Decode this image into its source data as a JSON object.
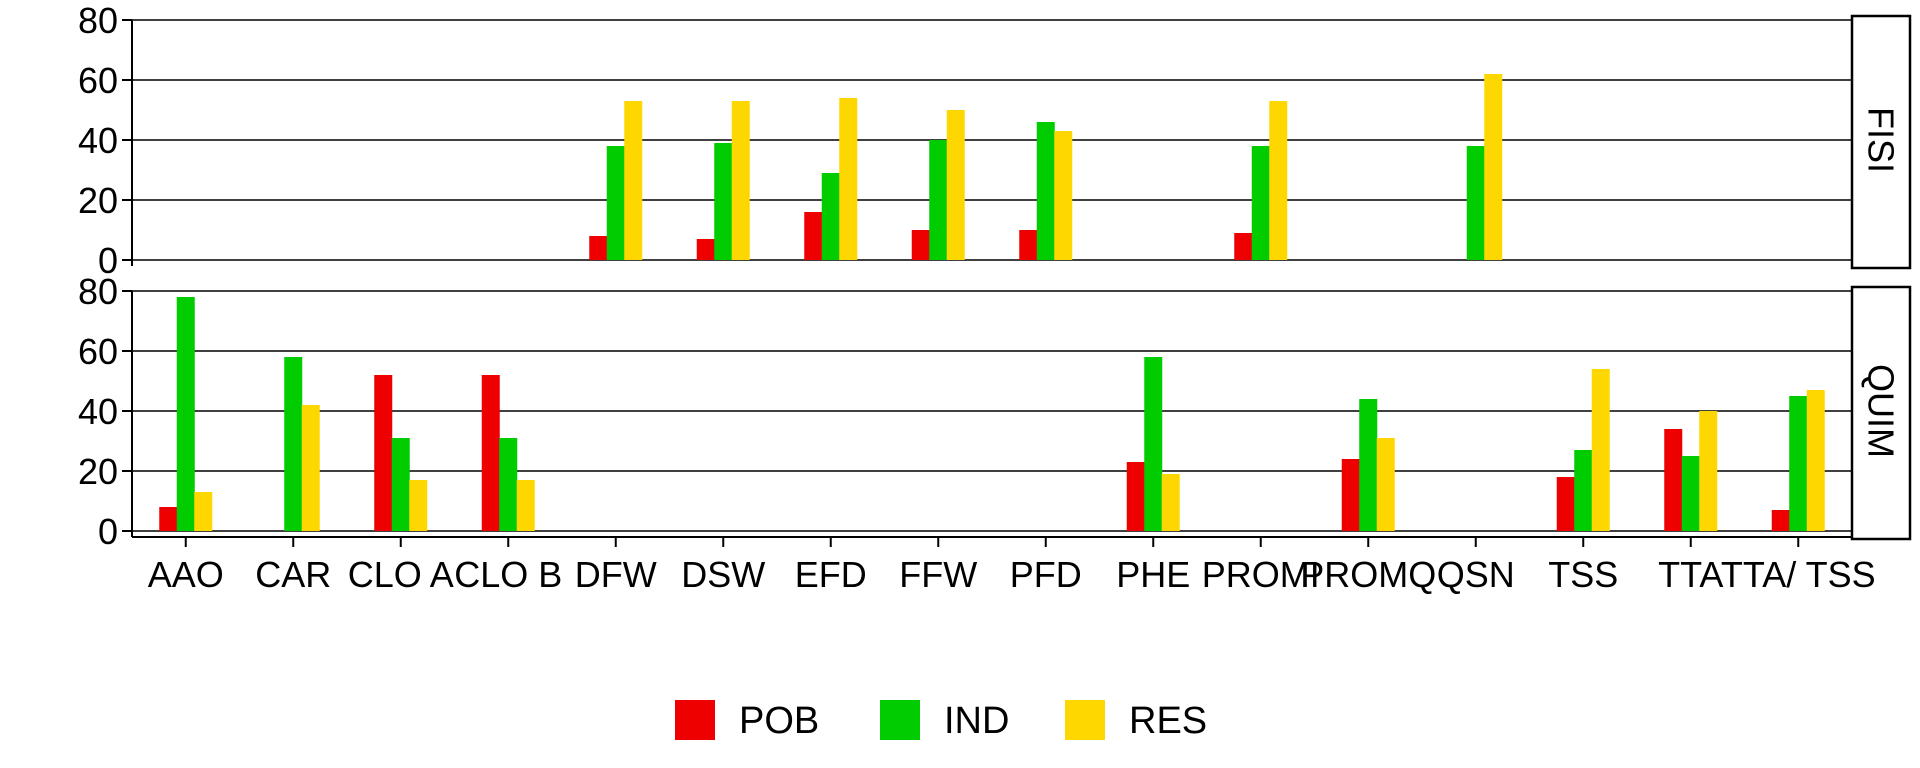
{
  "chart_data": {
    "type": "bar",
    "layout": "faceted",
    "categories": [
      "AAO",
      "CAR",
      "CLO A",
      "CLO B",
      "DFW",
      "DSW",
      "EFD",
      "FFW",
      "PFD",
      "PHE",
      "PROMI",
      "PROMQ",
      "QSN",
      "TSS",
      "TTA",
      "TTA/ TSS"
    ],
    "series_names": [
      "POB",
      "IND",
      "RES"
    ],
    "colors": {
      "POB": "#ee0000",
      "IND": "#00cc00",
      "RES": "#ffd700"
    },
    "ylim": [
      0,
      80
    ],
    "yticks": [
      0,
      20,
      40,
      60,
      80
    ],
    "grid": true,
    "legend_position": "bottom",
    "panels": [
      {
        "label": "FISI",
        "series": [
          {
            "name": "POB",
            "values": [
              null,
              null,
              null,
              null,
              8,
              7,
              16,
              10,
              10,
              null,
              9,
              null,
              null,
              null,
              null,
              null
            ]
          },
          {
            "name": "IND",
            "values": [
              null,
              null,
              null,
              null,
              38,
              39,
              29,
              40,
              46,
              null,
              38,
              null,
              38,
              null,
              null,
              null
            ]
          },
          {
            "name": "RES",
            "values": [
              null,
              null,
              null,
              null,
              53,
              53,
              54,
              50,
              43,
              null,
              53,
              null,
              62,
              null,
              null,
              null
            ]
          }
        ]
      },
      {
        "label": "QUIM",
        "series": [
          {
            "name": "POB",
            "values": [
              8,
              null,
              52,
              52,
              null,
              null,
              null,
              null,
              null,
              23,
              null,
              24,
              null,
              18,
              34,
              7
            ]
          },
          {
            "name": "IND",
            "values": [
              78,
              58,
              31,
              31,
              null,
              null,
              null,
              null,
              null,
              58,
              null,
              44,
              null,
              27,
              25,
              45
            ]
          },
          {
            "name": "RES",
            "values": [
              13,
              42,
              17,
              17,
              null,
              null,
              null,
              null,
              null,
              19,
              null,
              31,
              null,
              54,
              40,
              47
            ]
          }
        ]
      }
    ]
  }
}
